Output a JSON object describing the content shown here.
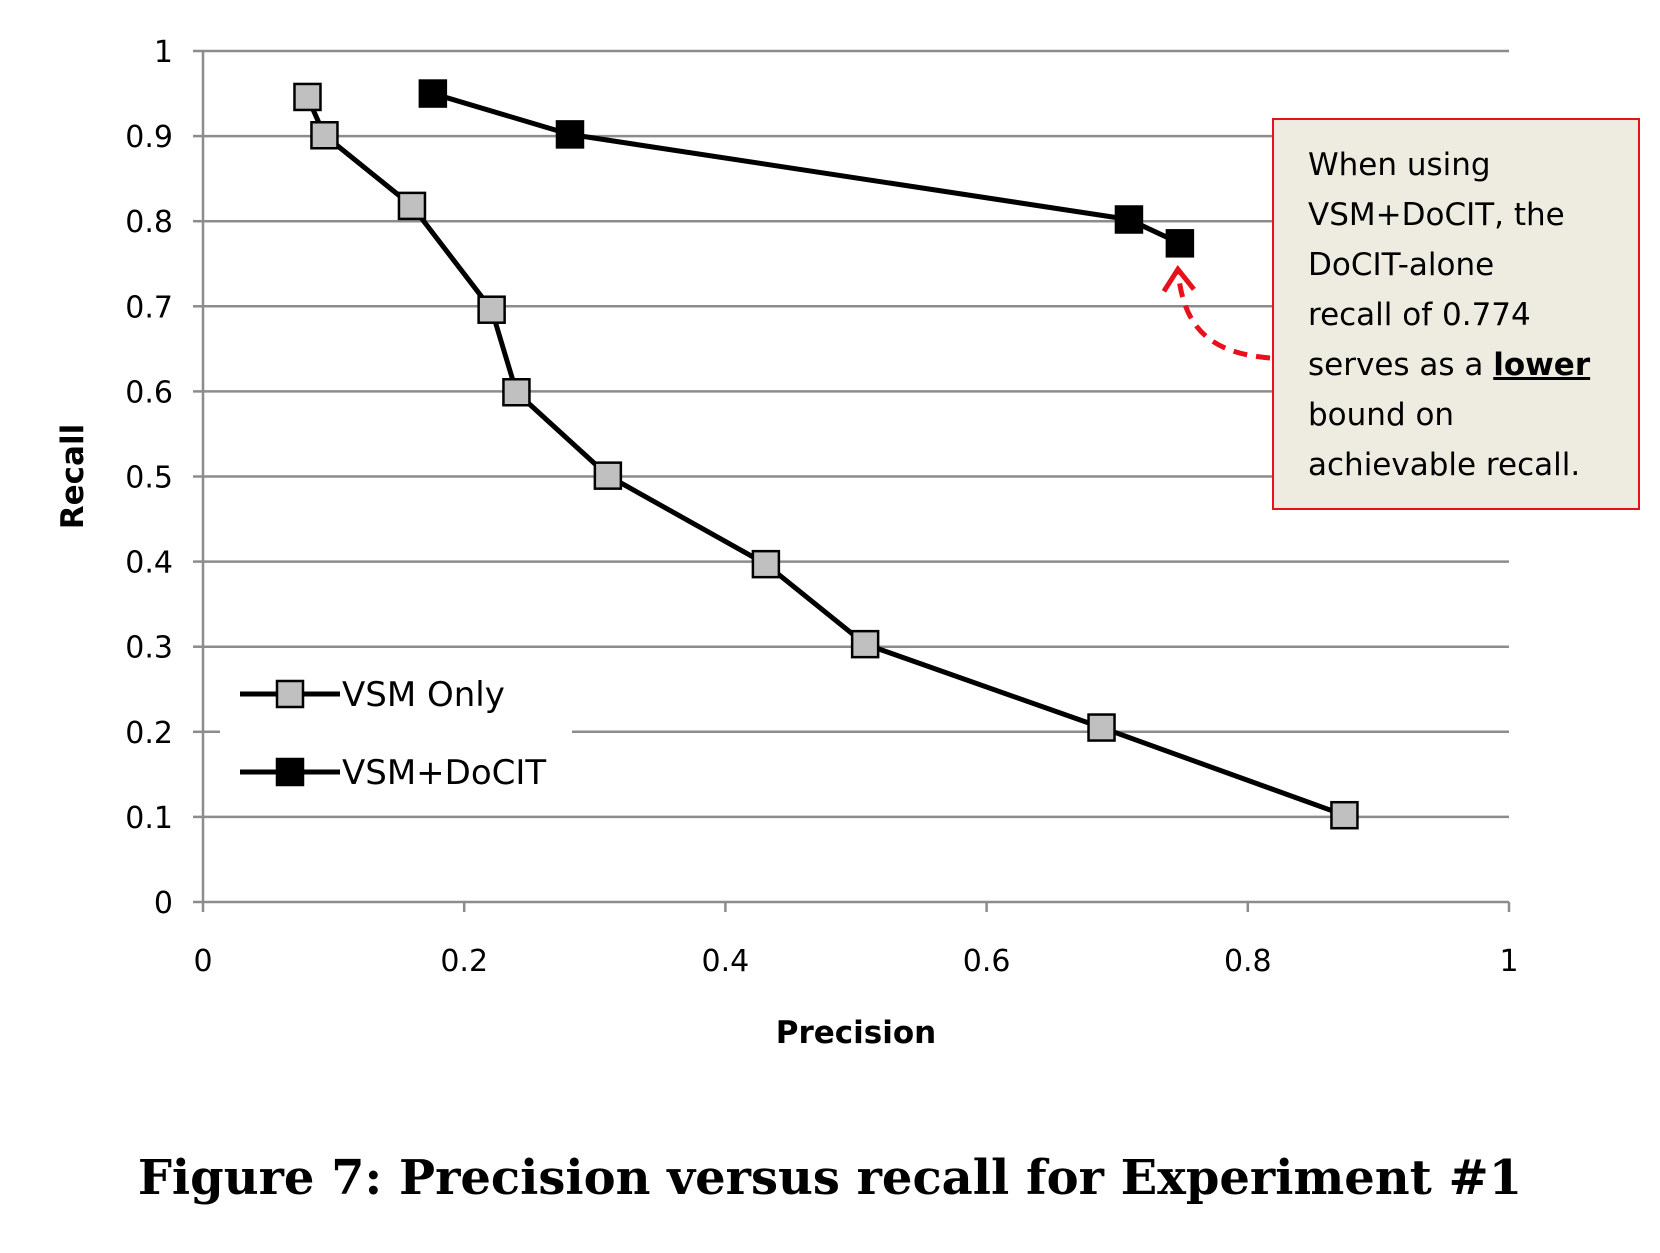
{
  "chart_data": {
    "type": "line",
    "xlabel": "Precision",
    "ylabel": "Recall",
    "xlim": [
      0,
      1
    ],
    "ylim": [
      0,
      1
    ],
    "x_ticks": [
      "0",
      "0.2",
      "0.4",
      "0.6",
      "0.8",
      "1"
    ],
    "y_ticks": [
      "0",
      "0.1",
      "0.2",
      "0.3",
      "0.4",
      "0.5",
      "0.6",
      "0.7",
      "0.8",
      "0.9",
      "1"
    ],
    "grid": "horizontal",
    "legend_position": "bottom-left",
    "series": [
      {
        "name": "VSM Only",
        "marker": "square",
        "marker_color": "#c0c0c0",
        "line_color": "#000000",
        "x": [
          0.08,
          0.093,
          0.16,
          0.221,
          0.24,
          0.31,
          0.431,
          0.507,
          0.688,
          0.874
        ],
        "y": [
          0.946,
          0.901,
          0.818,
          0.696,
          0.599,
          0.501,
          0.397,
          0.303,
          0.205,
          0.102
        ]
      },
      {
        "name": "VSM+DoCIT",
        "marker": "square",
        "marker_color": "#000000",
        "line_color": "#000000",
        "x": [
          0.176,
          0.281,
          0.709,
          0.748
        ],
        "y": [
          0.95,
          0.902,
          0.802,
          0.774
        ]
      }
    ],
    "annotation": {
      "lines": [
        "When using",
        "VSM+DoCIT, the",
        "DoCIT-alone",
        "recall of 0.774",
        "serves as a ",
        "bound on",
        "achievable recall."
      ],
      "emphasis": "lower",
      "target": {
        "x": 0.748,
        "y": 0.774
      },
      "border_color": "#e8101a",
      "background_color": "#eeece1",
      "arrow_color": "#e8101a"
    }
  },
  "caption": "Figure 7: Precision versus recall for Experiment #1"
}
